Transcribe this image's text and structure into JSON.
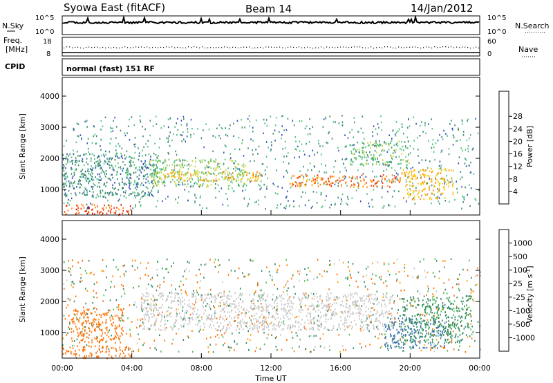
{
  "header": {
    "station": "Syowa East (fitACF)",
    "beam": "Beam 14",
    "date": "14/Jan/2012"
  },
  "strip_labels": {
    "nsky": "N.Sky",
    "nsearch": "N.Search",
    "freq_line1": "Freq.",
    "freq_line2": "[MHz]",
    "nave": "Nave",
    "cpid": "CPID",
    "cpid_value": "normal (fast) 151 RF"
  },
  "strip_ticks": {
    "count_top": "10^5",
    "count_bottom": "10^0",
    "freq_top": "18",
    "freq_bottom": "8",
    "nave_top": "60",
    "nave_bottom": "0"
  },
  "x_axis": {
    "label": "Time UT",
    "ticks": [
      "00:00",
      "04:00",
      "08:00",
      "12:00",
      "16:00",
      "20:00",
      "00:00"
    ]
  },
  "y_axis": {
    "label": "Slant Range [km]",
    "ticks": [
      "1000",
      "2000",
      "3000",
      "4000"
    ]
  },
  "power_colorbar": {
    "label": "Power [dB]",
    "ticks": [
      "4",
      "8",
      "12",
      "16",
      "20",
      "24",
      "28"
    ],
    "colors": [
      "#0000ff",
      "#3050b8",
      "#3a8c6c",
      "#52c080",
      "#c8d23a",
      "#ffc000",
      "#ff8000",
      "#ff3000",
      "#e00000"
    ]
  },
  "velocity_colorbar": {
    "label": "Velocity [m s",
    "label_sup": "-1",
    "label_end": "]",
    "ticks": [
      "1000",
      "500",
      "100",
      "25",
      "-25",
      "-100",
      "-500",
      "-1000"
    ],
    "colors": [
      "#2040c0",
      "#3a74b0",
      "#2f8a60",
      "#4cbf4c",
      "#c8c8c8",
      "#ffa000",
      "#ff7000",
      "#ff3a00",
      "#e00000"
    ]
  },
  "chart_data": [
    {
      "type": "heatmap",
      "panel": "power",
      "x": [
        "00:00",
        "04:00",
        "08:00",
        "12:00",
        "16:00",
        "20:00",
        "00:00"
      ],
      "ylabel": "Slant Range [km]",
      "ylim": [
        180,
        4600
      ],
      "units": "dB",
      "colorbar_ticks": [
        4,
        8,
        12,
        16,
        20,
        24,
        28
      ],
      "regions": [
        {
          "t0": 0.0,
          "t1": 4.0,
          "r0": 200,
          "r1": 550,
          "value": 27
        },
        {
          "t0": 0.0,
          "t1": 5.5,
          "r0": 800,
          "r1": 2200,
          "value": 8
        },
        {
          "t0": 5.0,
          "t1": 10.5,
          "r0": 1100,
          "r1": 2000,
          "value": 14
        },
        {
          "t0": 5.5,
          "t1": 11.5,
          "r0": 1300,
          "r1": 1600,
          "value": 20
        },
        {
          "t0": 13.0,
          "t1": 19.5,
          "r0": 1100,
          "r1": 1500,
          "value": 25
        },
        {
          "t0": 16.5,
          "t1": 20.0,
          "r0": 1800,
          "r1": 2600,
          "value": 12
        },
        {
          "t0": 19.5,
          "t1": 22.5,
          "r0": 700,
          "r1": 1700,
          "value": 20
        }
      ]
    },
    {
      "type": "heatmap",
      "panel": "velocity",
      "x": [
        "00:00",
        "04:00",
        "08:00",
        "12:00",
        "16:00",
        "20:00",
        "00:00"
      ],
      "ylabel": "Slant Range [km]",
      "ylim": [
        180,
        4600
      ],
      "units": "m s-1",
      "colorbar_ticks": [
        1000,
        500,
        100,
        25,
        -25,
        -100,
        -500,
        -1000
      ],
      "regions": [
        {
          "t0": 0.0,
          "t1": 4.0,
          "r0": 200,
          "r1": 600,
          "value": -300
        },
        {
          "t0": 0.5,
          "t1": 3.5,
          "r0": 700,
          "r1": 1800,
          "value": -300
        },
        {
          "t0": 4.5,
          "t1": 19.0,
          "r0": 1100,
          "r1": 2300,
          "value": 0
        },
        {
          "t0": 18.5,
          "t1": 22.0,
          "r0": 500,
          "r1": 1500,
          "value": 700
        },
        {
          "t0": 19.5,
          "t1": 23.5,
          "r0": 700,
          "r1": 2200,
          "value": 150
        }
      ]
    }
  ]
}
